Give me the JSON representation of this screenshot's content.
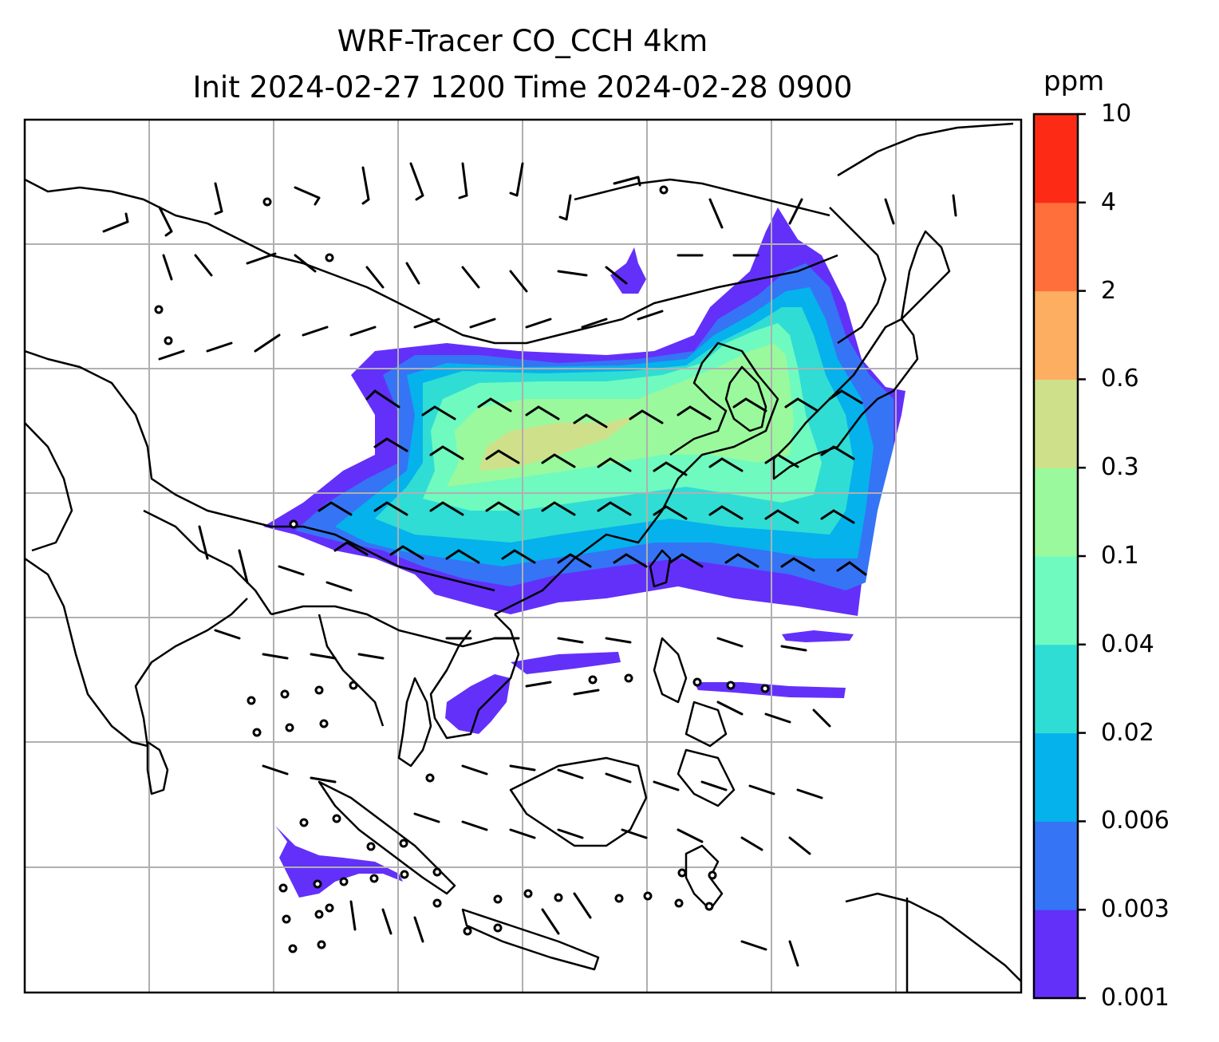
{
  "title": {
    "line1": "WRF-Tracer CO_CCH 4km",
    "line2": "Init 2024-02-27 1200 Time 2024-02-28 0900"
  },
  "colorbar": {
    "unit": "ppm",
    "levels": [
      "0.001",
      "0.003",
      "0.006",
      "0.02",
      "0.04",
      "0.1",
      "0.3",
      "0.6",
      "2",
      "4",
      "10"
    ],
    "colors": [
      "#6330fa",
      "#3574f5",
      "#05b2ec",
      "#2fddd4",
      "#6ffac0",
      "#9af99c",
      "#cfe08b",
      "#fdae60",
      "#fe6f3b",
      "#fd2b16"
    ]
  },
  "map": {
    "gridlines": true,
    "gridline_color": "#b0b0b0",
    "coastline_color": "#000000",
    "features": [
      "coastlines",
      "country borders",
      "wind barbs",
      "calm wind circles",
      "tracer concentration shading"
    ]
  }
}
